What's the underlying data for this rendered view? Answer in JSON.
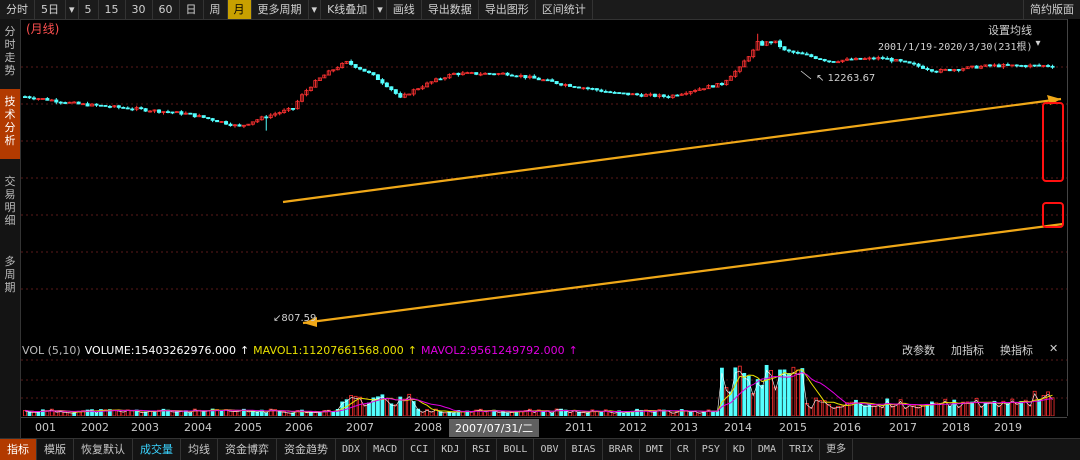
{
  "toolbar": {
    "items": [
      "分时",
      "5日",
      "▾",
      "5",
      "15",
      "30",
      "60",
      "日",
      "周",
      "月",
      "更多周期",
      "▾",
      "K线叠加",
      "▾",
      "画线",
      "导出数据",
      "导出图形",
      "区间统计"
    ],
    "active_index": 9,
    "right_label": "简约版面"
  },
  "sidebar": {
    "tabs": [
      "分时走势",
      "技术分析",
      "交易明细",
      "多周期"
    ],
    "active_index": 1
  },
  "main": {
    "period_label": "(月线)",
    "set_ma_label": "设置均线",
    "range_label": "2001/1/19-2020/3/30(231根)",
    "range_arrow": "▾",
    "high_annotation": "12263.67",
    "low_annotation": "807.59"
  },
  "volume": {
    "title": "VOL (5,10)",
    "volume_label": "VOLUME:15403262976.000",
    "mavol1_label": "MAVOL1:11207661568.000",
    "mavol2_label": "MAVOL2:9561249792.000",
    "buttons": [
      "改参数",
      "加指标",
      "换指标"
    ],
    "close": "✕",
    "colors": {
      "volume": "#ffffff",
      "mavol1": "#e8e000",
      "mavol2": "#e000e0"
    }
  },
  "xaxis": {
    "years": [
      "001",
      "2002",
      "2003",
      "2004",
      "2005",
      "2006",
      "2007",
      "2008",
      "2011",
      "2012",
      "2013",
      "2014",
      "2015",
      "2016",
      "2017",
      "2018",
      "2019"
    ],
    "cursor_label": "2007/07/31/二"
  },
  "indicators": {
    "tabs": [
      "指标",
      "模版",
      "恢复默认",
      "成交量",
      "均线",
      "资金博弈",
      "资金趋势"
    ],
    "codes": [
      "DDX",
      "MACD",
      "CCI",
      "KDJ",
      "RSI",
      "BOLL",
      "OBV",
      "BIAS",
      "BRAR",
      "DMI",
      "CR",
      "PSY",
      "KD",
      "DMA",
      "TRIX",
      "更多"
    ],
    "active_tab": 0,
    "green_tab": 3
  },
  "colors": {
    "up": "#ff3232",
    "down": "#54ffff",
    "channel": "#f0a818",
    "highlight": "#ff1010",
    "grid": "#5a1a1a"
  },
  "chart_data": {
    "type": "candlestick",
    "title": "(月线)",
    "period": "2001/1/19-2020/3/30",
    "bars": 231,
    "annotations": [
      {
        "label": "12263.67",
        "kind": "high",
        "x": "2015"
      },
      {
        "label": "807.59",
        "kind": "low",
        "x": "2005"
      }
    ],
    "approx_close_by_year": {
      "2001": 2100,
      "2002": 1700,
      "2003": 1500,
      "2004": 1300,
      "2005": 900,
      "2006": 1500,
      "2007": 5500,
      "2008": 2000,
      "2009": 4000,
      "2010": 4000,
      "2011": 3000,
      "2012": 2300,
      "2013": 2100,
      "2014": 3000,
      "2015": 8000,
      "2016": 5700,
      "2017": 6200,
      "2018": 4300,
      "2019": 5000
    }
  }
}
